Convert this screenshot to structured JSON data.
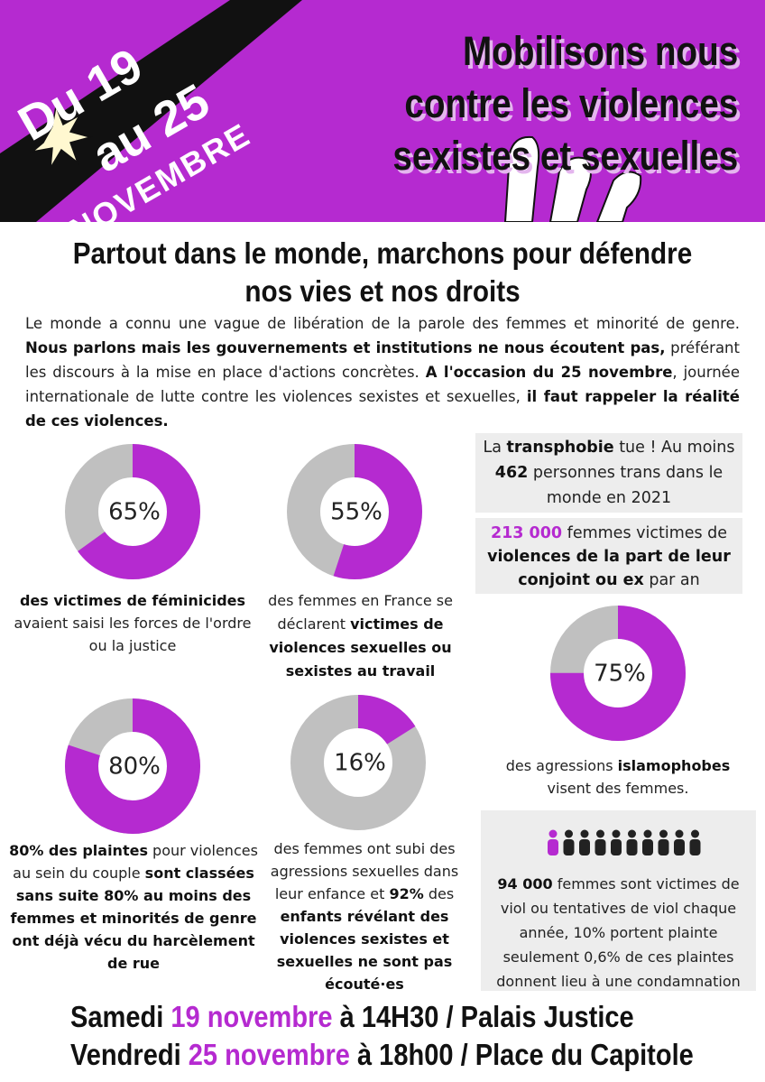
{
  "header": {
    "date_line1": "Du 19",
    "date_line2": "au 25",
    "month": "NOVEMBRE",
    "title": [
      "Mobilisons nous",
      "contre les violences",
      "sexistes et sexuelles"
    ]
  },
  "subtitle": [
    "Partout dans le monde, marchons pour défendre",
    "nos vies et nos droits"
  ],
  "intro": [
    "Le monde a connu une vague de libération de la parole des femmes et minorité de genre. ",
    {
      "text": "Nous parlons mais les gouvernements et institutions ne nous écoutent pas,",
      "strong": true
    },
    " préférant les discours à la mise en place d'actions concrètes. ",
    {
      "text": "A l'occasion du 25 novembre",
      "strong": true
    },
    ", journée internationale de lutte contre les violences sexistes et sexuelles, ",
    {
      "text": "il faut rappeler la réalité de ces violences.",
      "strong": true
    }
  ],
  "boxes": {
    "transphobia": [
      "La ",
      {
        "text": "transphobie",
        "strong": true
      },
      " tue ! Au moins ",
      {
        "text": "462",
        "strong": true
      },
      " personnes trans dans le monde en 2021"
    ],
    "partner": [
      {
        "text": "213 000",
        "strong": true,
        "color": "#b52ad0"
      },
      " femmes victimes de ",
      {
        "text": "violences de la part de leur conjoint ou ex",
        "strong": true
      },
      " par an"
    ],
    "rape": [
      {
        "text": "94 000",
        "strong": true
      },
      " femmes sont victimes de viol ou tentatives de viol chaque année, 10% portent plainte seulement 0,6% de ces plaintes donnent lieu à une condamnation"
    ]
  },
  "donuts": [
    {
      "value": 65,
      "label": "65%",
      "caption": [
        {
          "text": "des victimes de féminicides",
          "strong": true
        },
        " avaient saisi les forces de l'ordre ou la justice"
      ]
    },
    {
      "value": 55,
      "label": "55%",
      "caption": [
        "des femmes en France se déclarent ",
        {
          "text": "victimes de violences sexuelles ou sexistes au travail",
          "strong": true
        }
      ]
    },
    {
      "value": 75,
      "label": "75%",
      "caption": [
        "des agressions ",
        {
          "text": "islamophobes",
          "strong": true
        },
        " visent des femmes."
      ]
    },
    {
      "value": 80,
      "label": "80%",
      "caption": [
        {
          "text": "80% des plaintes",
          "strong": true
        },
        " pour violences au sein du couple ",
        {
          "text": "sont classées sans suite 80% au moins des femmes et minorités de genre ont déjà vécu du harcèlement de rue",
          "strong": true
        }
      ]
    },
    {
      "value": 16,
      "label": "16%",
      "caption": [
        "des femmes ont subi des agressions sexuelles dans leur enfance et ",
        {
          "text": "92%",
          "strong": true
        },
        " des ",
        {
          "text": "enfants révélant des violences sexistes et sexuelles ne sont pas écouté·es",
          "strong": true
        }
      ]
    }
  ],
  "footer": [
    [
      "Samedi ",
      {
        "text": "19 novembre",
        "color": "#b52ad0"
      },
      " à 14H30 / Palais Justice"
    ],
    [
      "Vendredi ",
      {
        "text": "25 novembre",
        "color": "#b52ad0"
      },
      " à 18h00 / Place du Capitole"
    ]
  ]
}
